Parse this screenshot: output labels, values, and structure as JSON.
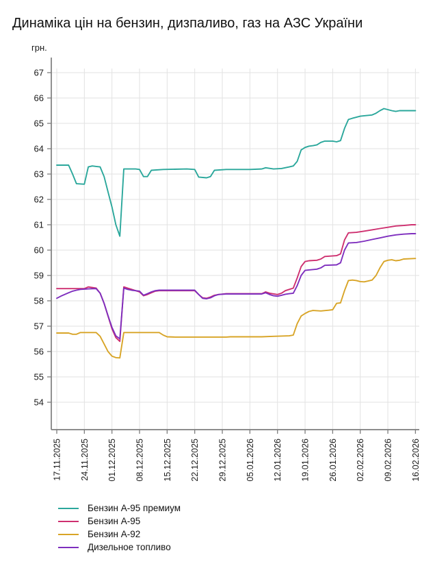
{
  "title": "Динаміка цін на бензин, дизпаливо, газ на АЗС України",
  "chart_data": {
    "type": "line",
    "title": "Динаміка цін на бензин, дизпаливо, газ на АЗС України",
    "y_unit": "грн.",
    "grid": true,
    "legend_position": "bottom-left",
    "y_ticks": [
      54,
      55,
      56,
      57,
      58,
      59,
      60,
      61,
      62,
      63,
      64,
      65,
      66,
      67
    ],
    "ylim": [
      52.9,
      67.6
    ],
    "x_tick_labels": [
      "17.11.2025",
      "24.11.2025",
      "01.12.2025",
      "08.12.2025",
      "15.12.2025",
      "22.12.2025",
      "29.12.2025",
      "05.01.2026",
      "12.01.2026",
      "19.01.2026",
      "26.01.2026",
      "02.02.2026",
      "09.02.2026",
      "16.02.2026"
    ],
    "x_tick_interval_days": 7,
    "x_range_days": [
      0,
      91
    ],
    "series": [
      {
        "id": "benzin-a95-premium",
        "name": "Бензин А-95 премиум",
        "color": "#2AA79B",
        "points": [
          [
            0,
            63.35
          ],
          [
            3,
            63.35
          ],
          [
            4,
            63.0
          ],
          [
            5,
            62.62
          ],
          [
            7,
            62.6
          ],
          [
            8,
            63.28
          ],
          [
            9,
            63.32
          ],
          [
            10,
            63.3
          ],
          [
            11,
            63.28
          ],
          [
            12,
            62.9
          ],
          [
            13,
            62.3
          ],
          [
            14,
            61.7
          ],
          [
            15,
            61.0
          ],
          [
            16,
            60.55
          ],
          [
            17,
            63.2
          ],
          [
            20,
            63.2
          ],
          [
            21,
            63.18
          ],
          [
            22,
            62.9
          ],
          [
            23,
            62.9
          ],
          [
            24,
            63.15
          ],
          [
            27,
            63.18
          ],
          [
            33,
            63.2
          ],
          [
            35,
            63.18
          ],
          [
            36,
            62.88
          ],
          [
            38,
            62.85
          ],
          [
            39,
            62.9
          ],
          [
            40,
            63.15
          ],
          [
            43,
            63.18
          ],
          [
            49,
            63.18
          ],
          [
            52,
            63.2
          ],
          [
            53,
            63.25
          ],
          [
            55,
            63.2
          ],
          [
            57,
            63.22
          ],
          [
            59,
            63.28
          ],
          [
            60,
            63.32
          ],
          [
            61,
            63.5
          ],
          [
            62,
            63.95
          ],
          [
            63,
            64.05
          ],
          [
            64,
            64.1
          ],
          [
            65,
            64.12
          ],
          [
            66,
            64.15
          ],
          [
            67,
            64.25
          ],
          [
            68,
            64.3
          ],
          [
            70,
            64.3
          ],
          [
            71,
            64.27
          ],
          [
            72,
            64.32
          ],
          [
            73,
            64.8
          ],
          [
            74,
            65.15
          ],
          [
            75,
            65.2
          ],
          [
            76,
            65.24
          ],
          [
            77,
            65.28
          ],
          [
            78,
            65.3
          ],
          [
            80,
            65.33
          ],
          [
            81,
            65.4
          ],
          [
            82,
            65.5
          ],
          [
            83,
            65.58
          ],
          [
            84,
            65.54
          ],
          [
            85,
            65.5
          ],
          [
            86,
            65.47
          ],
          [
            87,
            65.5
          ],
          [
            91,
            65.5
          ]
        ]
      },
      {
        "id": "benzin-a95",
        "name": "Бензин А-95",
        "color": "#CE2F6F",
        "points": [
          [
            0,
            58.48
          ],
          [
            7,
            58.48
          ],
          [
            8,
            58.55
          ],
          [
            10,
            58.5
          ],
          [
            11,
            58.3
          ],
          [
            12,
            57.9
          ],
          [
            13,
            57.4
          ],
          [
            14,
            56.9
          ],
          [
            15,
            56.55
          ],
          [
            16,
            56.4
          ],
          [
            17,
            58.55
          ],
          [
            18,
            58.5
          ],
          [
            19,
            58.45
          ],
          [
            20,
            58.4
          ],
          [
            21,
            58.35
          ],
          [
            22,
            58.2
          ],
          [
            23,
            58.25
          ],
          [
            24,
            58.32
          ],
          [
            25,
            58.38
          ],
          [
            26,
            58.4
          ],
          [
            35,
            58.4
          ],
          [
            36,
            58.25
          ],
          [
            37,
            58.12
          ],
          [
            38,
            58.1
          ],
          [
            39,
            58.15
          ],
          [
            40,
            58.22
          ],
          [
            41,
            58.25
          ],
          [
            43,
            58.28
          ],
          [
            52,
            58.28
          ],
          [
            53,
            58.35
          ],
          [
            54,
            58.3
          ],
          [
            56,
            58.25
          ],
          [
            57,
            58.3
          ],
          [
            58,
            58.4
          ],
          [
            59,
            58.45
          ],
          [
            60,
            58.5
          ],
          [
            61,
            58.9
          ],
          [
            62,
            59.35
          ],
          [
            63,
            59.55
          ],
          [
            64,
            59.58
          ],
          [
            66,
            59.6
          ],
          [
            67,
            59.65
          ],
          [
            68,
            59.75
          ],
          [
            71,
            59.78
          ],
          [
            72,
            59.85
          ],
          [
            73,
            60.4
          ],
          [
            74,
            60.68
          ],
          [
            76,
            60.7
          ],
          [
            78,
            60.75
          ],
          [
            80,
            60.8
          ],
          [
            82,
            60.85
          ],
          [
            84,
            60.9
          ],
          [
            86,
            60.95
          ],
          [
            88,
            60.97
          ],
          [
            90,
            61.0
          ],
          [
            91,
            61.0
          ]
        ]
      },
      {
        "id": "benzin-a92",
        "name": "Бензин А-92",
        "color": "#D8A426",
        "points": [
          [
            0,
            56.73
          ],
          [
            3,
            56.73
          ],
          [
            4,
            56.68
          ],
          [
            5,
            56.68
          ],
          [
            6,
            56.75
          ],
          [
            10,
            56.75
          ],
          [
            11,
            56.6
          ],
          [
            12,
            56.3
          ],
          [
            13,
            56.0
          ],
          [
            14,
            55.82
          ],
          [
            15,
            55.76
          ],
          [
            16,
            55.75
          ],
          [
            17,
            56.75
          ],
          [
            26,
            56.75
          ],
          [
            27,
            56.65
          ],
          [
            28,
            56.58
          ],
          [
            30,
            56.57
          ],
          [
            43,
            56.57
          ],
          [
            44,
            56.58
          ],
          [
            52,
            56.58
          ],
          [
            55,
            56.6
          ],
          [
            59,
            56.62
          ],
          [
            60,
            56.65
          ],
          [
            61,
            57.1
          ],
          [
            62,
            57.4
          ],
          [
            63,
            57.5
          ],
          [
            64,
            57.58
          ],
          [
            65,
            57.62
          ],
          [
            67,
            57.6
          ],
          [
            69,
            57.63
          ],
          [
            70,
            57.65
          ],
          [
            71,
            57.9
          ],
          [
            72,
            57.92
          ],
          [
            73,
            58.4
          ],
          [
            74,
            58.8
          ],
          [
            75,
            58.82
          ],
          [
            76,
            58.8
          ],
          [
            77,
            58.76
          ],
          [
            78,
            58.75
          ],
          [
            79,
            58.78
          ],
          [
            80,
            58.82
          ],
          [
            81,
            59.0
          ],
          [
            82,
            59.3
          ],
          [
            83,
            59.55
          ],
          [
            84,
            59.6
          ],
          [
            85,
            59.62
          ],
          [
            86,
            59.58
          ],
          [
            87,
            59.6
          ],
          [
            88,
            59.65
          ],
          [
            91,
            59.67
          ]
        ]
      },
      {
        "id": "dizelnoe-toplivo",
        "name": "Дизельное топливо",
        "color": "#7E2EBE",
        "points": [
          [
            0,
            58.1
          ],
          [
            1,
            58.18
          ],
          [
            2,
            58.25
          ],
          [
            3,
            58.32
          ],
          [
            4,
            58.38
          ],
          [
            5,
            58.42
          ],
          [
            6,
            58.45
          ],
          [
            8,
            58.47
          ],
          [
            10,
            58.48
          ],
          [
            11,
            58.3
          ],
          [
            12,
            57.9
          ],
          [
            13,
            57.42
          ],
          [
            14,
            56.95
          ],
          [
            15,
            56.62
          ],
          [
            16,
            56.5
          ],
          [
            17,
            58.5
          ],
          [
            18,
            58.45
          ],
          [
            19,
            58.42
          ],
          [
            20,
            58.4
          ],
          [
            21,
            58.38
          ],
          [
            22,
            58.22
          ],
          [
            23,
            58.28
          ],
          [
            24,
            58.35
          ],
          [
            25,
            58.4
          ],
          [
            26,
            58.42
          ],
          [
            35,
            58.42
          ],
          [
            36,
            58.25
          ],
          [
            37,
            58.1
          ],
          [
            38,
            58.08
          ],
          [
            39,
            58.12
          ],
          [
            40,
            58.2
          ],
          [
            41,
            58.25
          ],
          [
            43,
            58.27
          ],
          [
            52,
            58.27
          ],
          [
            53,
            58.32
          ],
          [
            54,
            58.25
          ],
          [
            55,
            58.2
          ],
          [
            56,
            58.18
          ],
          [
            57,
            58.22
          ],
          [
            58,
            58.26
          ],
          [
            59,
            58.28
          ],
          [
            60,
            58.3
          ],
          [
            61,
            58.6
          ],
          [
            62,
            59.0
          ],
          [
            63,
            59.2
          ],
          [
            64,
            59.22
          ],
          [
            66,
            59.25
          ],
          [
            67,
            59.3
          ],
          [
            68,
            59.4
          ],
          [
            71,
            59.42
          ],
          [
            72,
            59.5
          ],
          [
            73,
            60.0
          ],
          [
            74,
            60.28
          ],
          [
            76,
            60.3
          ],
          [
            78,
            60.35
          ],
          [
            80,
            60.42
          ],
          [
            82,
            60.48
          ],
          [
            84,
            60.55
          ],
          [
            86,
            60.6
          ],
          [
            88,
            60.63
          ],
          [
            90,
            60.65
          ],
          [
            91,
            60.65
          ]
        ]
      }
    ]
  }
}
